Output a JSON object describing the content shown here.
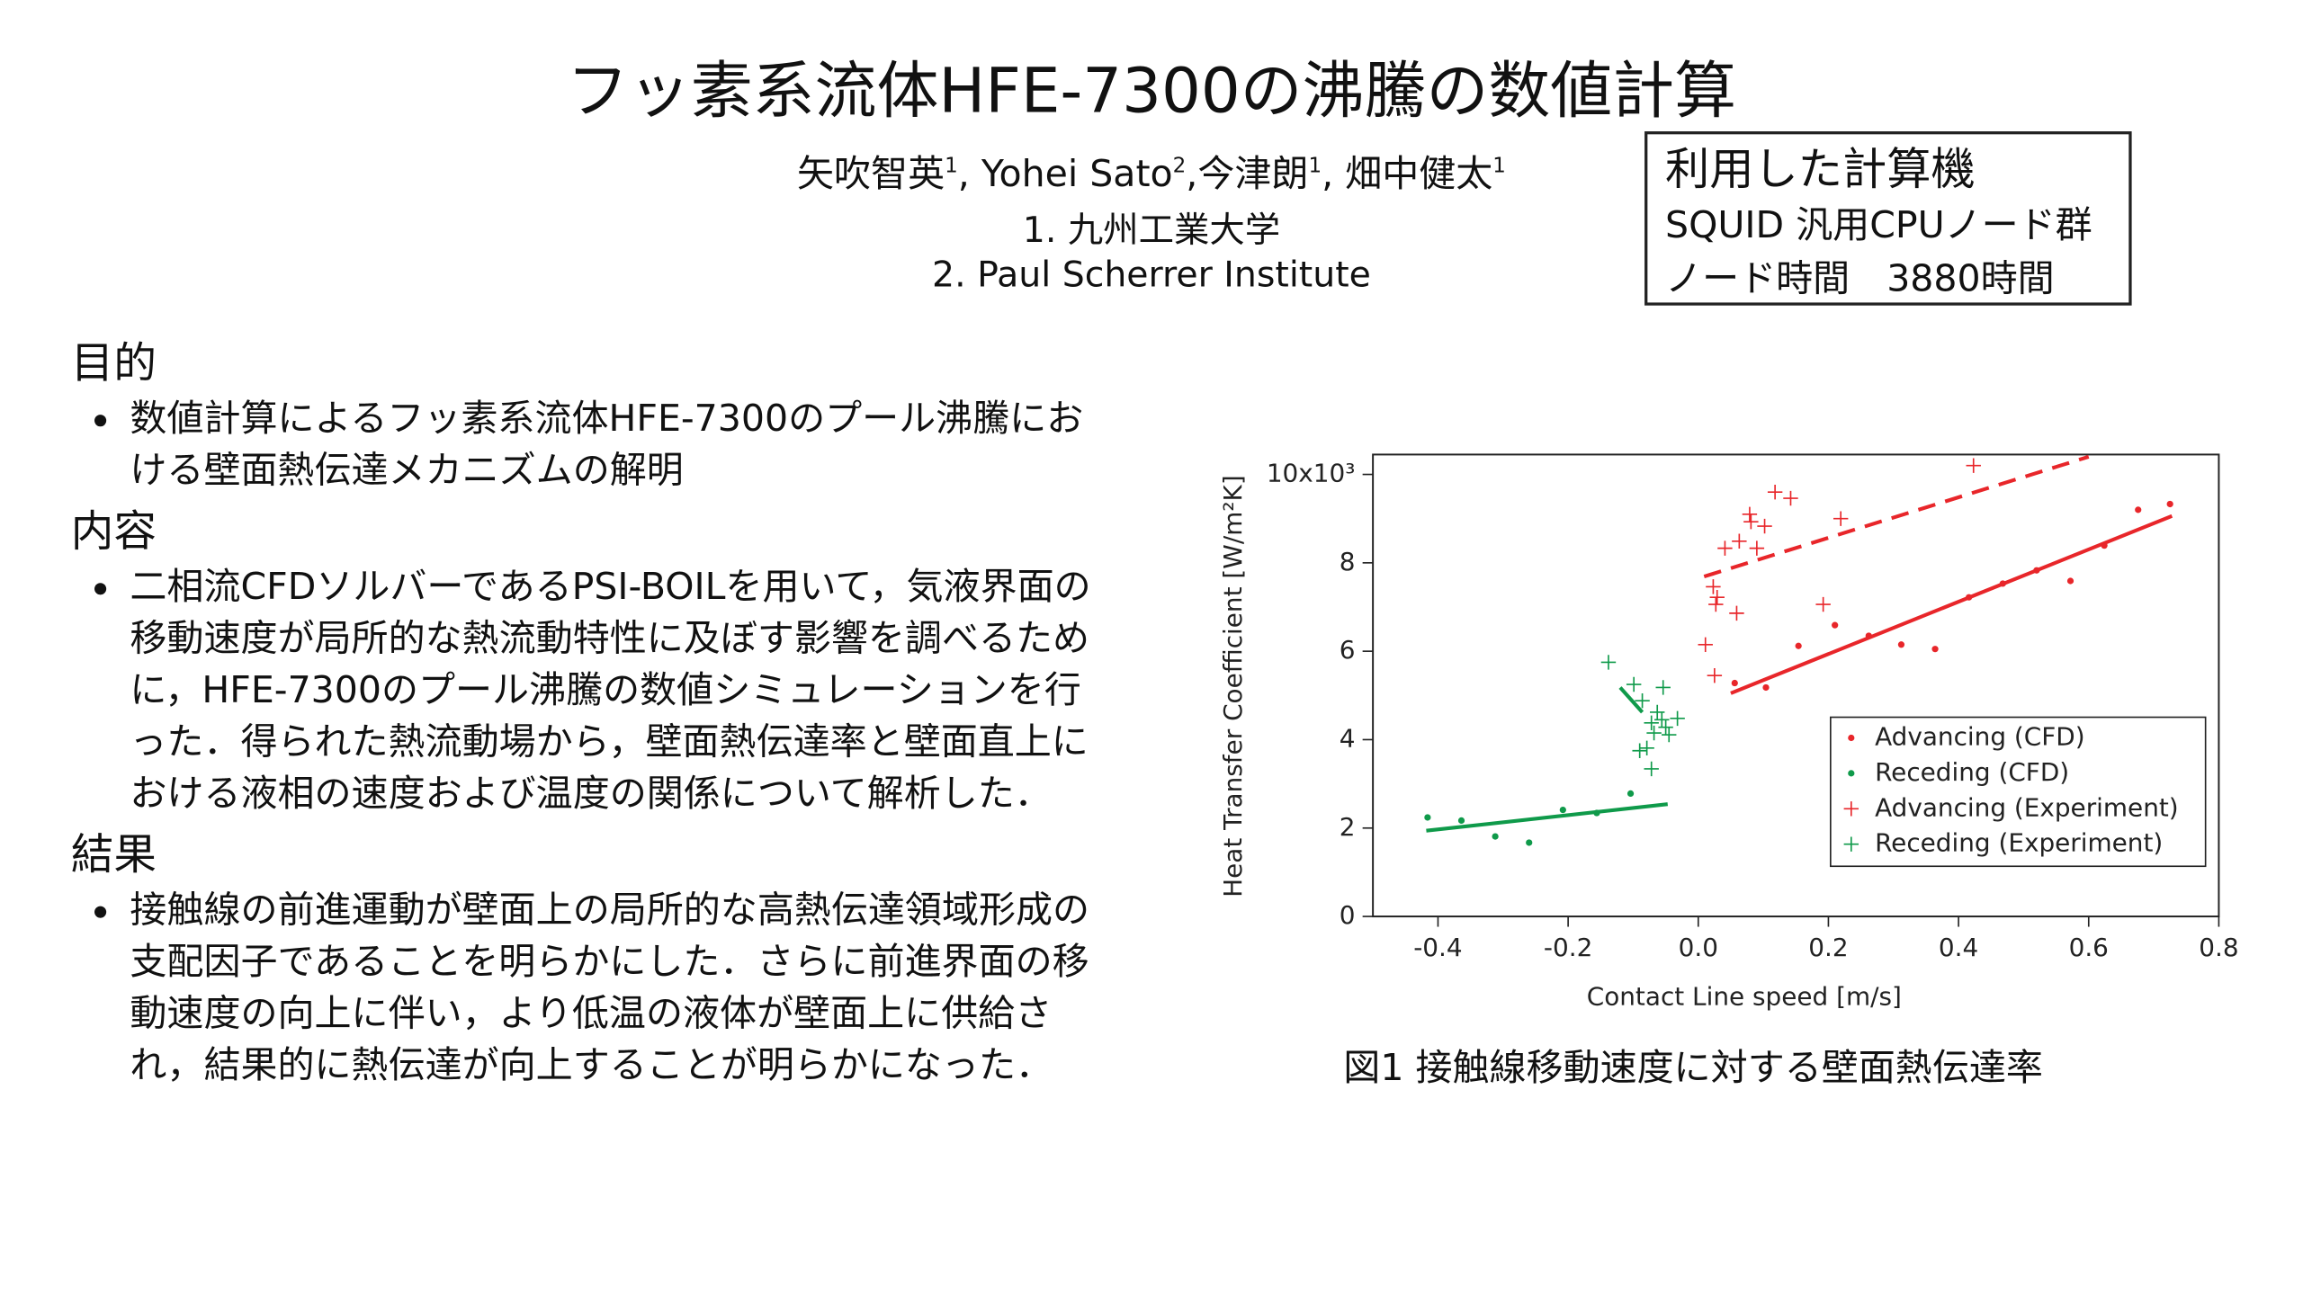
{
  "header": {
    "title": "フッ素系流体HFE-7300の沸騰の数値計算",
    "authors": [
      {
        "name": "矢吹智英",
        "sup": "1",
        "sep": ", "
      },
      {
        "name": "Yohei Sato",
        "sup": "2",
        "sep": ","
      },
      {
        "name": "今津朗",
        "sup": "1",
        "sep": ", "
      },
      {
        "name": "畑中健太",
        "sup": "1"
      }
    ],
    "affiliations": [
      "1. 九州工業大学",
      "2. Paul Scherrer Institute"
    ]
  },
  "computer_box": {
    "title": "利用した計算機",
    "lines": [
      "SQUID 汎用CPUノード群",
      "ノード時間　3880時間"
    ]
  },
  "sections": [
    {
      "heading": "目的",
      "bullets": [
        "数値計算によるフッ素系流体HFE-7300のプール沸騰における壁面熱伝達メカニズムの解明"
      ]
    },
    {
      "heading": "内容",
      "bullets": [
        "二相流CFDソルバーであるPSI-BOILを用いて，気液界面の移動速度が局所的な熱流動特性に及ぼす影響を調べるために，HFE-7300のプール沸騰の数値シミュレーションを行った．得られた熱流動場から，壁面熱伝達率と壁面直上における液相の速度および温度の関係について解析した．"
      ]
    },
    {
      "heading": "結果",
      "bullets": [
        "接触線の前進運動が壁面上の局所的な高熱伝達領域形成の支配因子であることを明らかにした．さらに前進界面の移動速度の向上に伴い，より低温の液体が壁面上に供給され，結果的に熱伝達が向上することが明らかになった．"
      ]
    }
  ],
  "figure_caption": "図1 接触線移動速度に対する壁面熱伝達率",
  "chart_data": {
    "type": "scatter",
    "xlabel": "Contact Line speed [m/s]",
    "ylabel": "Heat Transfer Coefficient [W/m²K]",
    "xlim": [
      -0.5,
      0.8
    ],
    "ylim": [
      0,
      10.45
    ],
    "xticks": [
      -0.4,
      -0.2,
      {
        "value": 0,
        "label": "0.0"
      },
      0.2,
      0.4,
      0.6,
      0.8
    ],
    "yticks": [
      0,
      2,
      4,
      6,
      8,
      {
        "value": 10,
        "label": "10x10³"
      }
    ],
    "legend": "lower right",
    "series": [
      {
        "name": "Advancing (CFD)",
        "color": "#e8262a",
        "marker": "dot",
        "x": [
          0.056,
          0.104,
          0.154,
          0.21,
          0.262,
          0.312,
          0.364,
          0.416,
          0.468,
          0.52,
          0.572,
          0.624,
          0.676,
          0.725
        ],
        "values": [
          5.28,
          5.18,
          6.12,
          6.59,
          6.35,
          6.15,
          6.05,
          7.22,
          7.53,
          7.83,
          7.59,
          8.39,
          9.2,
          9.33
        ]
      },
      {
        "name": "Receding (CFD)",
        "color": "#0f9a4a",
        "marker": "dot",
        "x": [
          -0.416,
          -0.364,
          -0.312,
          -0.26,
          -0.208,
          -0.156,
          -0.104
        ],
        "values": [
          2.24,
          2.17,
          1.81,
          1.67,
          2.41,
          2.34,
          2.78
        ]
      },
      {
        "name": "Advancing (Experiment)",
        "color": "#e8262a",
        "marker": "plus",
        "x": [
          0.011,
          0.023,
          0.027,
          0.029,
          0.025,
          0.041,
          0.059,
          0.063,
          0.079,
          0.081,
          0.09,
          0.102,
          0.118,
          0.142,
          0.192,
          0.219,
          0.423
        ],
        "values": [
          6.15,
          7.46,
          7.06,
          7.22,
          5.45,
          8.33,
          6.86,
          8.49,
          9.1,
          8.93,
          8.33,
          8.83,
          9.6,
          9.46,
          7.06,
          9.0,
          10.2
        ]
      },
      {
        "name": "Receding (Experiment)",
        "color": "#0f9a4a",
        "marker": "plus",
        "x": [
          -0.138,
          -0.099,
          -0.086,
          -0.072,
          -0.079,
          -0.072,
          -0.068,
          -0.056,
          -0.054,
          -0.045,
          -0.05,
          -0.032,
          -0.063,
          -0.09
        ],
        "values": [
          5.75,
          5.25,
          4.88,
          4.38,
          3.81,
          3.34,
          4.15,
          4.45,
          5.18,
          4.11,
          4.28,
          4.48,
          4.62,
          3.75
        ]
      }
    ],
    "fits": [
      {
        "color": "#e8262a",
        "dash": false,
        "x": [
          0.05,
          0.728
        ],
        "values": [
          5.05,
          9.06
        ]
      },
      {
        "color": "#e8262a",
        "dash": true,
        "x": [
          0.009,
          0.6
        ],
        "values": [
          7.69,
          10.4
        ]
      },
      {
        "color": "#0f9a4a",
        "dash": false,
        "x": [
          -0.418,
          -0.047
        ],
        "values": [
          1.94,
          2.54
        ]
      },
      {
        "color": "#0f9a4a",
        "dash": false,
        "x": [
          -0.12,
          -0.086
        ],
        "values": [
          5.18,
          4.62
        ]
      }
    ]
  }
}
